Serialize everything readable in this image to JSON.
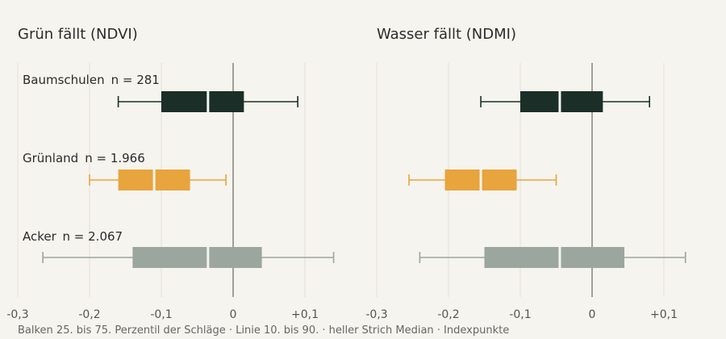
{
  "footnote": "Balken 25. bis 75. Perzentil der Schläge · Linie 10. bis 90. · heller Strich Median · Indexpunkte",
  "chart_data": [
    {
      "type": "boxplot",
      "title": "Grün fällt (NDVI)",
      "xlim": [
        -0.3,
        0.2
      ],
      "ticks": [
        -0.3,
        -0.2,
        -0.1,
        0,
        0.1
      ],
      "tick_labels": [
        "-0,3",
        "-0,2",
        "-0,1",
        "0",
        "+0,1"
      ],
      "series": [
        {
          "name": "Baumschulen",
          "n_label": "n = 281",
          "p10": -0.16,
          "p25": -0.1,
          "median": -0.035,
          "p75": 0.015,
          "p90": 0.09,
          "color": "#1b2e28"
        },
        {
          "name": "Grünland",
          "n_label": "n = 1.966",
          "p10": -0.2,
          "p25": -0.16,
          "median": -0.11,
          "p75": -0.06,
          "p90": -0.01,
          "color": "#e8a43d"
        },
        {
          "name": "Acker",
          "n_label": "n = 2.067",
          "p10": -0.265,
          "p25": -0.14,
          "median": -0.035,
          "p75": 0.04,
          "p90": 0.14,
          "color": "#9ba69f"
        }
      ]
    },
    {
      "type": "boxplot",
      "title": "Wasser fällt (NDMI)",
      "xlim": [
        -0.3,
        0.2
      ],
      "ticks": [
        -0.3,
        -0.2,
        -0.1,
        0,
        0.1
      ],
      "tick_labels": [
        "-0,3",
        "-0,2",
        "-0,1",
        "0",
        "+0,1"
      ],
      "series": [
        {
          "name": "Baumschulen",
          "p10": -0.155,
          "p25": -0.1,
          "median": -0.045,
          "p75": 0.015,
          "p90": 0.08,
          "color": "#1b2e28"
        },
        {
          "name": "Grünland",
          "p10": -0.255,
          "p25": -0.205,
          "median": -0.155,
          "p75": -0.105,
          "p90": -0.05,
          "color": "#e8a43d"
        },
        {
          "name": "Acker",
          "p10": -0.24,
          "p25": -0.15,
          "median": -0.045,
          "p75": 0.045,
          "p90": 0.13,
          "color": "#9ba69f"
        }
      ]
    }
  ]
}
